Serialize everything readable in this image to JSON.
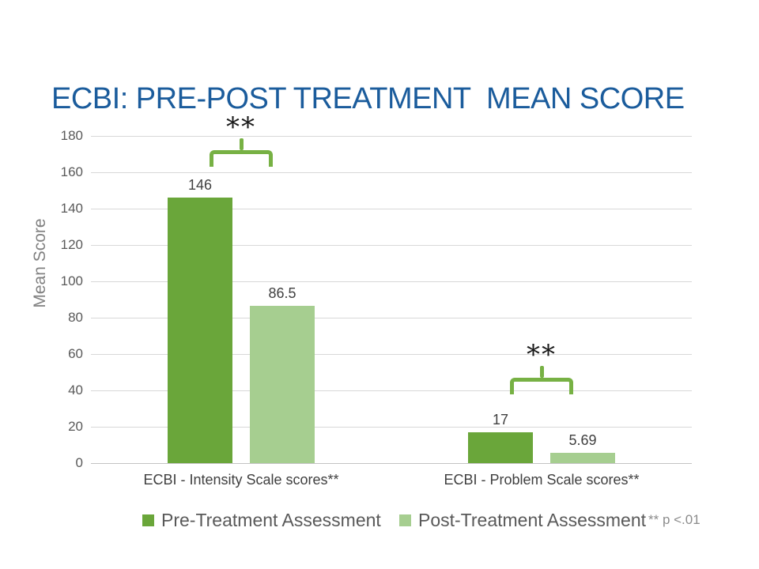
{
  "colors": {
    "title": "#1B5C9C",
    "axis_text": "#595959",
    "label_text": "#404040",
    "muted_text": "#808080",
    "gridline": "#D8D8D8",
    "bracket_green": "#77B144",
    "significance_text": "#1A1A1A",
    "footnote_text": "#8C8C8C",
    "background": "#FFFFFF"
  },
  "chart_data": {
    "type": "bar",
    "title": "ECBI: PRE-POST TREATMENT  MEAN SCORE",
    "ylabel": "Mean Score",
    "categories": [
      "ECBI - Intensity Scale scores**",
      "ECBI - Problem Scale scores**"
    ],
    "series": [
      {
        "name": "Pre-Treatment Assessment",
        "color": "#6AA63A",
        "values": [
          146,
          17
        ],
        "value_labels": [
          "146",
          "17"
        ]
      },
      {
        "name": "Post-Treatment Assessment",
        "color": "#A6CE90",
        "values": [
          86.5,
          5.69
        ],
        "value_labels": [
          "86.5",
          "5.69"
        ]
      }
    ],
    "ylim": [
      0,
      180
    ],
    "yticks": [
      0,
      20,
      40,
      60,
      80,
      100,
      120,
      140,
      160,
      180
    ],
    "grid": true,
    "legend_position": "bottom",
    "significance": [
      {
        "text": "**",
        "category_index": 0,
        "bracket_y": 172
      },
      {
        "text": "**",
        "category_index": 1,
        "bracket_y": 47
      }
    ],
    "footnote": "** p <.01"
  }
}
